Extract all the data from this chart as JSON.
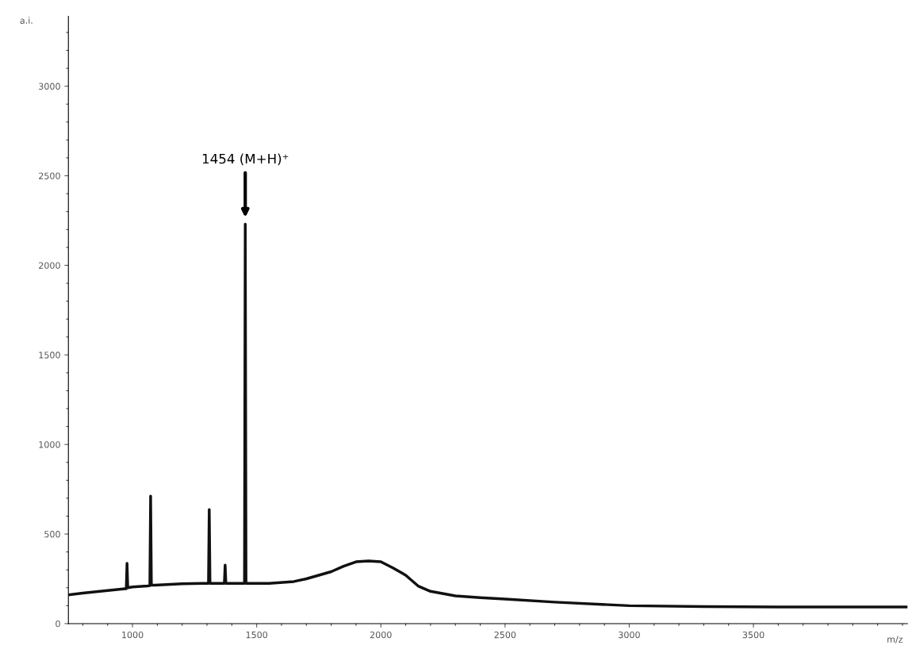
{
  "chart_data": {
    "type": "line",
    "xlabel": "m/z",
    "ylabel": "a.i.",
    "xlim": [
      742,
      4120
    ],
    "ylim": [
      0,
      3390
    ],
    "xticks": [
      1000,
      1500,
      2000,
      2500,
      3000,
      3500
    ],
    "yticks": [
      0,
      500,
      1000,
      1500,
      2000,
      2500,
      3000
    ],
    "grid": false,
    "marker": "none",
    "line_style": "solid",
    "annotations": [
      "1454 (M+H)⁺"
    ],
    "series": [
      {
        "color": "#111111",
        "x": [
          742,
          800,
          900,
          970,
          975,
          978,
          981,
          1000,
          1060,
          1070,
          1073,
          1076,
          1090,
          1200,
          1300,
          1306,
          1309,
          1312,
          1320,
          1365,
          1370,
          1373,
          1376,
          1400,
          1448,
          1451,
          1454,
          1457,
          1460,
          1550,
          1650,
          1700,
          1750,
          1800,
          1850,
          1900,
          1950,
          2000,
          2050,
          2100,
          2150,
          2200,
          2300,
          2400,
          2500,
          2700,
          3000,
          3300,
          3600,
          3900,
          4120
        ],
        "values": [
          160,
          170,
          185,
          195,
          195,
          336,
          200,
          205,
          210,
          212,
          712,
          215,
          215,
          222,
          225,
          225,
          637,
          225,
          225,
          225,
          225,
          327,
          225,
          225,
          225,
          225,
          2230,
          225,
          225,
          225,
          235,
          250,
          270,
          290,
          320,
          345,
          350,
          345,
          310,
          270,
          210,
          180,
          155,
          145,
          137,
          120,
          100,
          95,
          93,
          93,
          93
        ]
      }
    ]
  }
}
